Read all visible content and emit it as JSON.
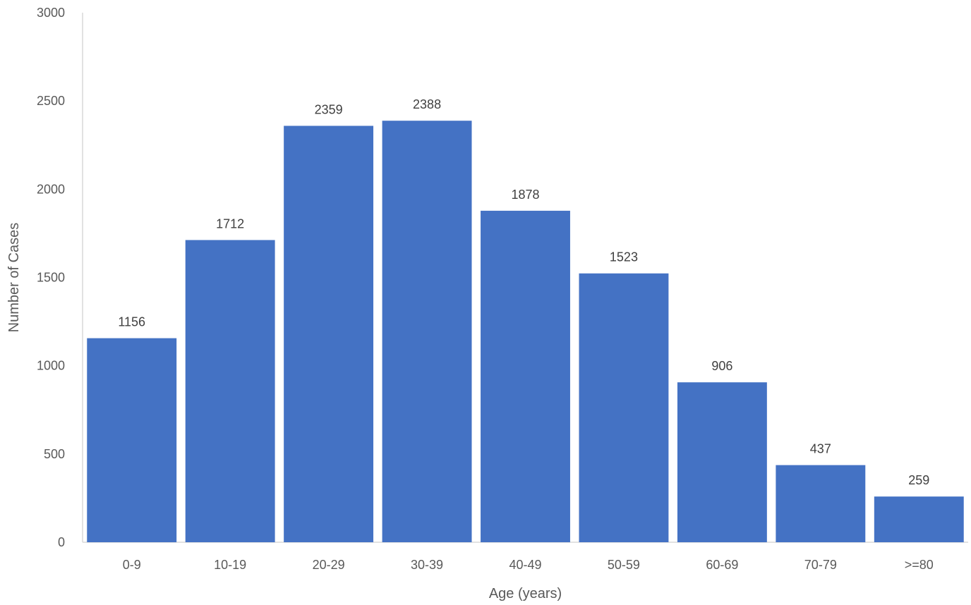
{
  "chart_data": {
    "type": "bar",
    "title": "",
    "xlabel": "Age (years)",
    "ylabel": "Number of Cases",
    "categories": [
      "0-9",
      "10-19",
      "20-29",
      "30-39",
      "40-49",
      "50-59",
      "60-69",
      "70-79",
      ">=80"
    ],
    "values": [
      1156,
      1712,
      2359,
      2388,
      1878,
      1523,
      906,
      437,
      259
    ],
    "data_labels": [
      "1156",
      "1712",
      "2359",
      "2388",
      "1878",
      "1523",
      "906",
      "437",
      "259"
    ],
    "ylim": [
      0,
      3000
    ],
    "yticks": [
      0,
      500,
      1000,
      1500,
      2000,
      2500,
      3000
    ],
    "ytick_labels": [
      "0",
      "500",
      "1000",
      "1500",
      "2000",
      "2500",
      "3000"
    ],
    "grid": false,
    "legend": "none",
    "bar_color": "#4472c4"
  }
}
